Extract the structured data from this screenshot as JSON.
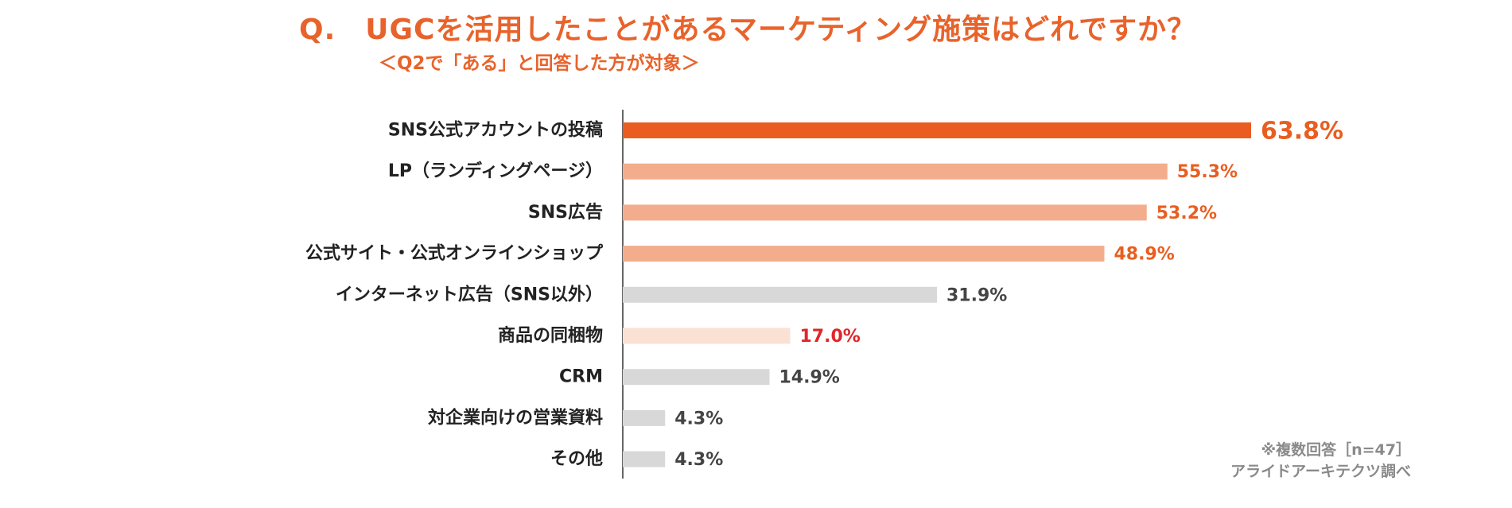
{
  "chart_data": {
    "type": "bar",
    "orientation": "horizontal",
    "title": "Q.　UGCを活用したことがあるマーケティング施策はどれですか？",
    "subtitle": "＜Q2で「ある」と回答した方が対象＞",
    "categories": [
      "SNS公式アカウントの投稿",
      "LP（ランディングページ）",
      "SNS広告",
      "公式サイト・公式オンラインショップ",
      "インターネット広告（SNS以外）",
      "商品の同梱物",
      "CRM",
      "対企業向けの営業資料",
      "その他"
    ],
    "values": [
      63.8,
      55.3,
      53.2,
      48.9,
      31.9,
      17.0,
      14.9,
      4.3,
      4.3
    ],
    "value_labels": [
      "63.8%",
      "55.3%",
      "53.2%",
      "48.9%",
      "31.9%",
      "17.0%",
      "14.9%",
      "4.3%",
      "4.3%"
    ],
    "bar_colors": [
      "#e95e20",
      "#f4ad8c",
      "#f4ad8c",
      "#f4ad8c",
      "#d8d8d8",
      "#fbe0d4",
      "#d8d8d8",
      "#d8d8d8",
      "#d8d8d8"
    ],
    "label_colors": [
      "#e95e20",
      "#e95e20",
      "#e95e20",
      "#e95e20",
      "#444444",
      "#e0262a",
      "#444444",
      "#444444",
      "#444444"
    ],
    "xlim": [
      0,
      63.8
    ],
    "xlabel": "",
    "ylabel": ""
  },
  "notes": {
    "respondents": "※複数回答［n=47］",
    "source": "アライドアーキテクツ調べ"
  }
}
